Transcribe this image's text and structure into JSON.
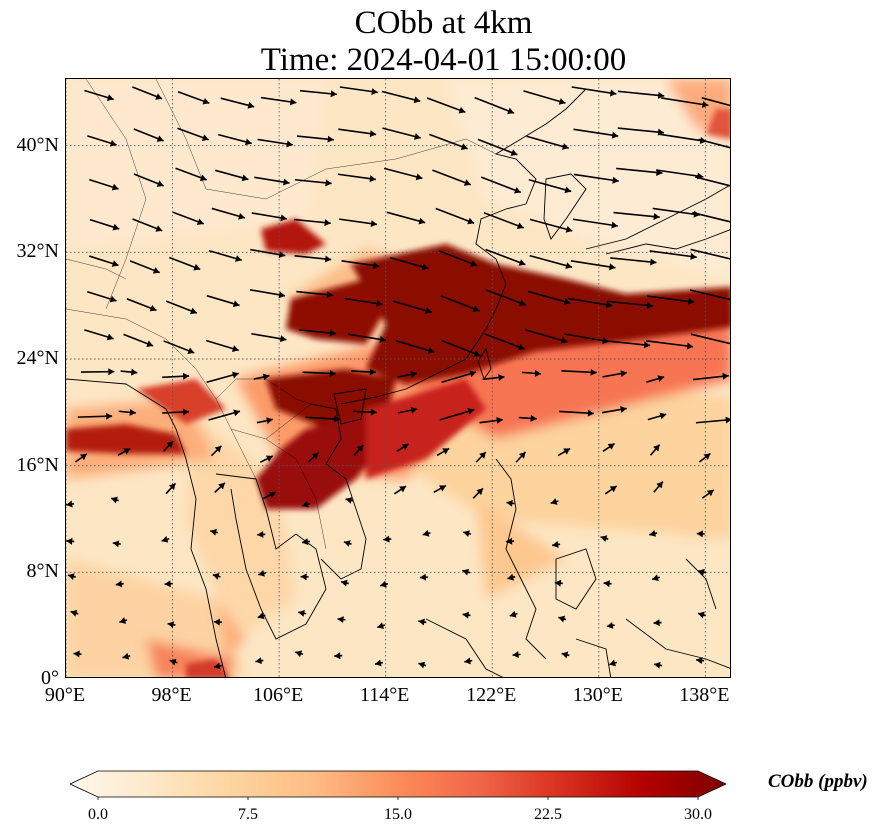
{
  "title": {
    "line1": "CObb at 4km",
    "line2": "Time: 2024-04-01 15:00:00"
  },
  "map": {
    "projection": "PlateCarree",
    "lon_range": [
      90,
      140
    ],
    "lat_range": [
      0,
      45
    ],
    "gridlines": "dotted",
    "lat_ticks": [
      {
        "value": 0,
        "label": "0°"
      },
      {
        "value": 8,
        "label": "8°N"
      },
      {
        "value": 16,
        "label": "16°N"
      },
      {
        "value": 24,
        "label": "24°N"
      },
      {
        "value": 32,
        "label": "32°N"
      },
      {
        "value": 40,
        "label": "40°N"
      }
    ],
    "lon_ticks": [
      {
        "value": 90,
        "label": "90°E"
      },
      {
        "value": 98,
        "label": "98°E"
      },
      {
        "value": 106,
        "label": "106°E"
      },
      {
        "value": 114,
        "label": "114°E"
      },
      {
        "value": 122,
        "label": "122°E"
      },
      {
        "value": 130,
        "label": "130°E"
      },
      {
        "value": 138,
        "label": "138°E"
      }
    ],
    "field": "CObb",
    "plume_regions": [
      {
        "lon": [
          108,
          126
        ],
        "lat": [
          24,
          31
        ],
        "level": "max"
      },
      {
        "lon": [
          124,
          140
        ],
        "lat": [
          25.5,
          29
        ],
        "level": "max"
      },
      {
        "lon": [
          104,
          115
        ],
        "lat": [
          13,
          24
        ],
        "level": "max"
      },
      {
        "lon": [
          90,
          99
        ],
        "lat": [
          16,
          18.5
        ],
        "level": "high"
      },
      {
        "lon": [
          104,
          108
        ],
        "lat": [
          32,
          34
        ],
        "level": "high"
      }
    ],
    "wind_vectors": "black quiver arrows, strongest westerlies north of 24°N"
  },
  "colorbar": {
    "label": "CObb (ppbv)",
    "min": 0.0,
    "max": 30.0,
    "extend": "both",
    "colormap": "OrRd",
    "colors": [
      "#fff7ec",
      "#fee8c8",
      "#fdd49e",
      "#fdbb84",
      "#fc8d59",
      "#ef6548",
      "#d7301f",
      "#b30000",
      "#7f0000"
    ],
    "ticks": [
      {
        "value": 0.0,
        "label": "0.0"
      },
      {
        "value": 7.5,
        "label": "7.5"
      },
      {
        "value": 15.0,
        "label": "15.0"
      },
      {
        "value": 22.5,
        "label": "22.5"
      },
      {
        "value": 30.0,
        "label": "30.0"
      }
    ]
  }
}
